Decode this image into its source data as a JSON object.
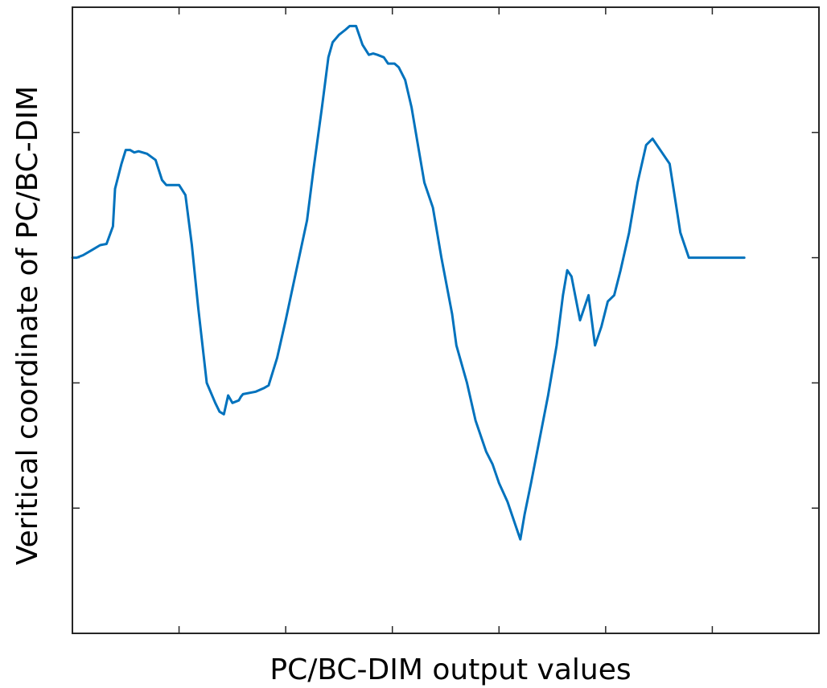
{
  "chart_data": {
    "type": "line",
    "title": "",
    "xlabel": "PC/BC-DIM output values",
    "ylabel": "Veritical coordinate of PC/BC-DIM",
    "grid": false,
    "legend": "none",
    "xlim": [
      0,
      35
    ],
    "ylim": [
      0,
      5
    ],
    "x_ticks": [
      0,
      5,
      10,
      15,
      20,
      25,
      30
    ],
    "y_ticks": [
      1,
      2,
      3,
      4
    ],
    "x_tick_labels": [],
    "y_tick_labels": [],
    "line_color": "#0072bd",
    "series": [
      {
        "x": [
          0.0,
          0.2,
          0.5,
          0.9,
          1.3,
          1.6,
          1.9,
          2.0,
          2.3,
          2.5,
          2.7,
          2.9,
          3.1,
          3.5,
          3.9,
          4.2,
          4.4,
          4.7,
          5.0,
          5.3,
          5.6,
          5.9,
          6.3,
          6.7,
          6.9,
          7.1,
          7.3,
          7.5,
          7.8,
          7.9,
          8.0,
          8.6,
          9.0,
          9.2,
          9.6,
          10.0,
          10.5,
          11.0,
          11.3,
          11.7,
          12.0,
          12.2,
          12.5,
          12.8,
          13.0,
          13.3,
          13.6,
          13.9,
          14.1,
          14.3,
          14.6,
          14.8,
          15.1,
          15.3,
          15.6,
          15.9,
          16.2,
          16.5,
          16.9,
          17.3,
          17.8,
          18.0,
          18.5,
          18.9,
          19.4,
          19.7,
          20.0,
          20.4,
          20.8,
          21.0,
          21.2,
          21.5,
          21.9,
          22.3,
          22.7,
          23.0,
          23.2,
          23.4,
          23.8,
          24.2,
          24.5,
          24.8,
          25.1,
          25.4,
          25.7,
          26.1,
          26.5,
          26.9,
          27.2,
          27.6,
          28.0,
          28.5,
          28.9,
          29.3,
          29.6,
          30.0,
          30.3,
          30.6,
          30.9,
          31.2,
          31.5
        ],
        "y": [
          3.0,
          3.0,
          3.02,
          3.06,
          3.1,
          3.11,
          3.25,
          3.55,
          3.75,
          3.86,
          3.86,
          3.84,
          3.85,
          3.83,
          3.78,
          3.62,
          3.58,
          3.58,
          3.58,
          3.5,
          3.1,
          2.6,
          2.0,
          1.84,
          1.77,
          1.75,
          1.9,
          1.84,
          1.86,
          1.89,
          1.91,
          1.93,
          1.96,
          1.98,
          2.2,
          2.5,
          2.9,
          3.3,
          3.7,
          4.2,
          4.6,
          4.72,
          4.78,
          4.82,
          4.85,
          4.85,
          4.7,
          4.62,
          4.63,
          4.62,
          4.6,
          4.55,
          4.55,
          4.52,
          4.42,
          4.2,
          3.9,
          3.6,
          3.4,
          3.0,
          2.55,
          2.3,
          2.0,
          1.7,
          1.45,
          1.35,
          1.2,
          1.05,
          0.85,
          0.75,
          0.95,
          1.2,
          1.55,
          1.9,
          2.3,
          2.7,
          2.9,
          2.85,
          2.5,
          2.7,
          2.3,
          2.45,
          2.65,
          2.7,
          2.9,
          3.2,
          3.6,
          3.9,
          3.95,
          3.85,
          3.75,
          3.2,
          3.0,
          3.0,
          3.0,
          3.0,
          3.0,
          3.0,
          3.0,
          3.0,
          3.0
        ]
      }
    ]
  }
}
